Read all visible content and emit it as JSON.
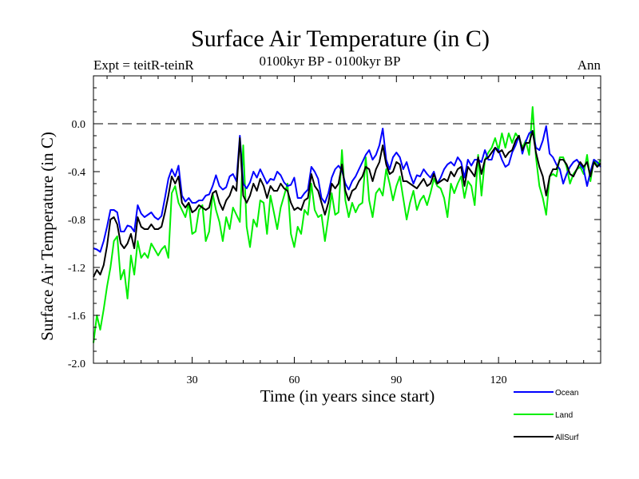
{
  "chart_data": {
    "type": "line",
    "title": "Surface Air Temperature (in C)",
    "subtitle": "0100kyr BP - 0100kyr BP",
    "left_label": "Expt = teitR-teinR",
    "right_label": "Ann",
    "xlabel": "Time (in years since start)",
    "ylabel": "Surface Air Temperature (in C)",
    "xlim": [
      1,
      150
    ],
    "ylim": [
      -2.0,
      0.4
    ],
    "xticks": [
      30,
      60,
      90,
      120
    ],
    "yticks": [
      -2.0,
      -1.6,
      -1.2,
      -0.8,
      -0.4,
      0.0
    ],
    "ytick_labels": [
      "-2.0",
      "-1.6",
      "-1.2",
      "-0.8",
      "-0.4",
      "0.0"
    ],
    "reference_line": 0.0,
    "legend_position": "bottom-right",
    "x": [
      1,
      2,
      3,
      4,
      5,
      6,
      7,
      8,
      9,
      10,
      11,
      12,
      13,
      14,
      15,
      16,
      17,
      18,
      19,
      20,
      21,
      22,
      23,
      24,
      25,
      26,
      27,
      28,
      29,
      30,
      31,
      32,
      33,
      34,
      35,
      36,
      37,
      38,
      39,
      40,
      41,
      42,
      43,
      44,
      45,
      46,
      47,
      48,
      49,
      50,
      51,
      52,
      53,
      54,
      55,
      56,
      57,
      58,
      59,
      60,
      61,
      62,
      63,
      64,
      65,
      66,
      67,
      68,
      69,
      70,
      71,
      72,
      73,
      74,
      75,
      76,
      77,
      78,
      79,
      80,
      81,
      82,
      83,
      84,
      85,
      86,
      87,
      88,
      89,
      90,
      91,
      92,
      93,
      94,
      95,
      96,
      97,
      98,
      99,
      100,
      101,
      102,
      103,
      104,
      105,
      106,
      107,
      108,
      109,
      110,
      111,
      112,
      113,
      114,
      115,
      116,
      117,
      118,
      119,
      120,
      121,
      122,
      123,
      124,
      125,
      126,
      127,
      128,
      129,
      130,
      131,
      132,
      133,
      134,
      135,
      136,
      137,
      138,
      139,
      140,
      141,
      142,
      143,
      144,
      145,
      146,
      147,
      148,
      149,
      150
    ],
    "series": [
      {
        "name": "Ocean",
        "color": "#0000ff",
        "values": [
          -1.04,
          -1.05,
          -1.07,
          -0.98,
          -0.86,
          -0.72,
          -0.72,
          -0.74,
          -0.9,
          -0.9,
          -0.85,
          -0.86,
          -0.9,
          -0.68,
          -0.75,
          -0.78,
          -0.76,
          -0.74,
          -0.78,
          -0.8,
          -0.77,
          -0.62,
          -0.46,
          -0.38,
          -0.44,
          -0.35,
          -0.6,
          -0.65,
          -0.62,
          -0.66,
          -0.66,
          -0.64,
          -0.64,
          -0.6,
          -0.59,
          -0.52,
          -0.43,
          -0.52,
          -0.55,
          -0.53,
          -0.44,
          -0.42,
          -0.48,
          -0.1,
          -0.5,
          -0.54,
          -0.49,
          -0.4,
          -0.45,
          -0.38,
          -0.44,
          -0.5,
          -0.46,
          -0.47,
          -0.4,
          -0.43,
          -0.49,
          -0.52,
          -0.51,
          -0.45,
          -0.62,
          -0.62,
          -0.58,
          -0.55,
          -0.36,
          -0.4,
          -0.46,
          -0.62,
          -0.66,
          -0.58,
          -0.45,
          -0.38,
          -0.35,
          -0.39,
          -0.5,
          -0.55,
          -0.48,
          -0.44,
          -0.38,
          -0.32,
          -0.26,
          -0.22,
          -0.3,
          -0.26,
          -0.18,
          -0.04,
          -0.3,
          -0.38,
          -0.28,
          -0.24,
          -0.28,
          -0.38,
          -0.32,
          -0.42,
          -0.5,
          -0.43,
          -0.44,
          -0.38,
          -0.42,
          -0.45,
          -0.4,
          -0.5,
          -0.45,
          -0.38,
          -0.34,
          -0.32,
          -0.35,
          -0.28,
          -0.32,
          -0.45,
          -0.3,
          -0.35,
          -0.3,
          -0.3,
          -0.32,
          -0.22,
          -0.3,
          -0.3,
          -0.2,
          -0.22,
          -0.3,
          -0.36,
          -0.34,
          -0.24,
          -0.18,
          -0.1,
          -0.25,
          -0.15,
          -0.08,
          -0.06,
          -0.2,
          -0.22,
          -0.14,
          -0.02,
          -0.25,
          -0.28,
          -0.34,
          -0.38,
          -0.5,
          -0.42,
          -0.36,
          -0.32,
          -0.3,
          -0.34,
          -0.38,
          -0.52,
          -0.4,
          -0.3,
          -0.32,
          -0.36
        ]
      },
      {
        "name": "Land",
        "color": "#00ee00",
        "values": [
          -1.83,
          -1.6,
          -1.72,
          -1.55,
          -1.36,
          -1.2,
          -0.98,
          -0.94,
          -1.3,
          -1.22,
          -1.46,
          -1.1,
          -1.26,
          -0.98,
          -1.12,
          -1.08,
          -1.12,
          -1.0,
          -1.05,
          -1.1,
          -1.05,
          -1.02,
          -1.12,
          -0.58,
          -0.52,
          -0.66,
          -0.72,
          -0.78,
          -0.66,
          -0.92,
          -0.9,
          -0.72,
          -0.68,
          -0.98,
          -0.9,
          -0.58,
          -0.72,
          -0.82,
          -0.98,
          -0.78,
          -0.88,
          -0.7,
          -0.76,
          -0.82,
          -0.18,
          -0.86,
          -1.03,
          -0.8,
          -0.86,
          -0.64,
          -0.66,
          -0.92,
          -0.6,
          -0.74,
          -0.88,
          -0.7,
          -0.6,
          -0.5,
          -0.92,
          -1.03,
          -0.86,
          -0.92,
          -0.72,
          -0.76,
          -0.5,
          -0.72,
          -0.78,
          -0.76,
          -0.98,
          -0.78,
          -0.58,
          -0.76,
          -0.74,
          -0.22,
          -0.64,
          -0.78,
          -0.66,
          -0.74,
          -0.68,
          -0.66,
          -0.28,
          -0.64,
          -0.78,
          -0.58,
          -0.54,
          -0.6,
          -0.38,
          -0.5,
          -0.64,
          -0.52,
          -0.44,
          -0.62,
          -0.8,
          -0.66,
          -0.56,
          -0.72,
          -0.64,
          -0.6,
          -0.68,
          -0.58,
          -0.46,
          -0.52,
          -0.54,
          -0.62,
          -0.78,
          -0.5,
          -0.58,
          -0.5,
          -0.44,
          -0.62,
          -0.48,
          -0.52,
          -0.68,
          -0.26,
          -0.6,
          -0.3,
          -0.24,
          -0.2,
          -0.12,
          -0.22,
          -0.08,
          -0.2,
          -0.08,
          -0.16,
          -0.08,
          -0.12,
          -0.2,
          -0.14,
          -0.26,
          0.14,
          -0.28,
          -0.52,
          -0.62,
          -0.76,
          -0.44,
          -0.42,
          -0.44,
          -0.28,
          -0.28,
          -0.36,
          -0.5,
          -0.42,
          -0.38,
          -0.36,
          -0.42,
          -0.26,
          -0.48,
          -0.3,
          -0.35,
          -0.3
        ]
      },
      {
        "name": "AllSurf",
        "color": "#000000",
        "values": [
          -1.28,
          -1.22,
          -1.26,
          -1.18,
          -1.02,
          -0.8,
          -0.78,
          -0.84,
          -1.0,
          -1.04,
          -1.0,
          -0.92,
          -1.04,
          -0.78,
          -0.86,
          -0.88,
          -0.88,
          -0.84,
          -0.88,
          -0.88,
          -0.86,
          -0.74,
          -0.6,
          -0.44,
          -0.5,
          -0.44,
          -0.66,
          -0.7,
          -0.66,
          -0.74,
          -0.72,
          -0.68,
          -0.7,
          -0.72,
          -0.7,
          -0.58,
          -0.56,
          -0.66,
          -0.72,
          -0.64,
          -0.6,
          -0.52,
          -0.56,
          -0.12,
          -0.6,
          -0.66,
          -0.6,
          -0.5,
          -0.56,
          -0.46,
          -0.52,
          -0.62,
          -0.52,
          -0.56,
          -0.56,
          -0.5,
          -0.54,
          -0.56,
          -0.66,
          -0.72,
          -0.7,
          -0.72,
          -0.64,
          -0.62,
          -0.42,
          -0.52,
          -0.56,
          -0.66,
          -0.76,
          -0.66,
          -0.5,
          -0.54,
          -0.5,
          -0.34,
          -0.56,
          -0.64,
          -0.56,
          -0.54,
          -0.48,
          -0.44,
          -0.36,
          -0.38,
          -0.48,
          -0.38,
          -0.32,
          -0.18,
          -0.34,
          -0.42,
          -0.4,
          -0.32,
          -0.34,
          -0.48,
          -0.48,
          -0.5,
          -0.52,
          -0.54,
          -0.5,
          -0.46,
          -0.52,
          -0.5,
          -0.42,
          -0.5,
          -0.48,
          -0.46,
          -0.48,
          -0.4,
          -0.44,
          -0.38,
          -0.36,
          -0.52,
          -0.36,
          -0.4,
          -0.44,
          -0.28,
          -0.42,
          -0.3,
          -0.28,
          -0.24,
          -0.2,
          -0.24,
          -0.22,
          -0.28,
          -0.24,
          -0.22,
          -0.14,
          -0.1,
          -0.22,
          -0.16,
          -0.16,
          -0.06,
          -0.24,
          -0.36,
          -0.44,
          -0.6,
          -0.44,
          -0.38,
          -0.38,
          -0.3,
          -0.3,
          -0.34,
          -0.42,
          -0.44,
          -0.38,
          -0.32,
          -0.36,
          -0.32,
          -0.44,
          -0.32,
          -0.36,
          -0.33
        ]
      }
    ]
  }
}
